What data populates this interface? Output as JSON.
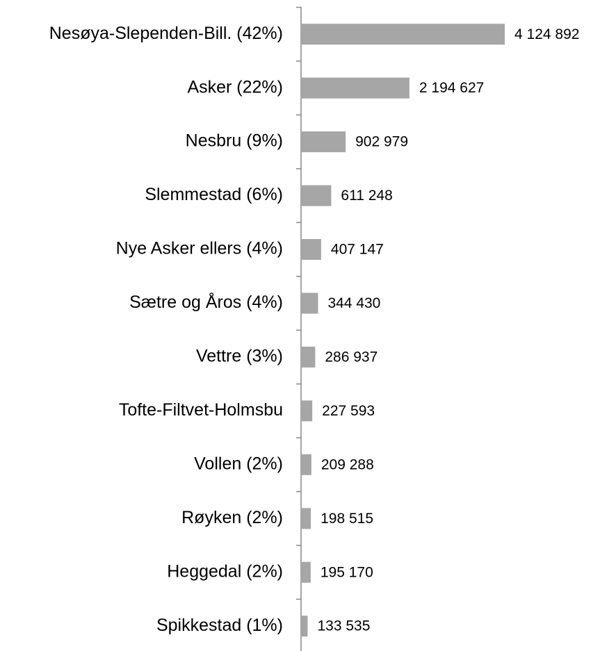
{
  "chart_data": {
    "type": "bar",
    "orientation": "horizontal",
    "categories": [
      "Nesøya-Slependen-Bill. (42%)",
      "Asker (22%)",
      "Nesbru (9%)",
      "Slemmestad (6%)",
      "Nye Asker ellers (4%)",
      "Sætre og Åros (4%)",
      "Vettre (3%)",
      "Tofte-Filtvet-Holmsbu",
      "Vollen (2%)",
      "Røyken (2%)",
      "Heggedal (2%)",
      "Spikkestad (1%)"
    ],
    "values": [
      4124892,
      2194627,
      902979,
      611248,
      407147,
      344430,
      286937,
      227593,
      209288,
      198515,
      195170,
      133535
    ],
    "value_labels": [
      "4 124 892",
      "2 194 627",
      "902 979",
      "611 248",
      "407 147",
      "344 430",
      "286 937",
      "227 593",
      "209 288",
      "198 515",
      "195 170",
      "133 535"
    ],
    "color": "#a6a6a6"
  }
}
